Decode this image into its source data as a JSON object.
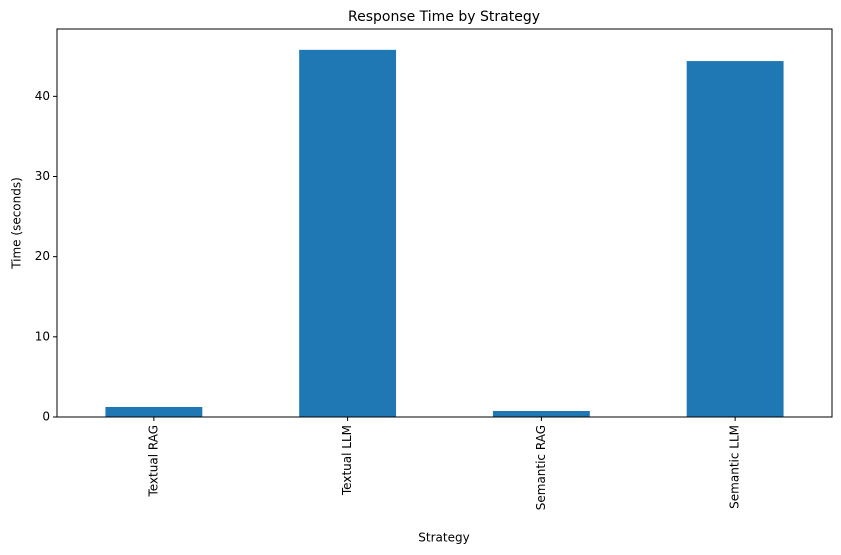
{
  "chart_data": {
    "type": "bar",
    "title": "Response Time by Strategy",
    "x_label": "Strategy",
    "y_label": "Time (seconds)",
    "categories": [
      "Textual RAG",
      "Textual LLM",
      "Semantic RAG",
      "Semantic LLM"
    ],
    "values": [
      1.25,
      45.8,
      0.75,
      44.4
    ],
    "color": "#1f77b4",
    "ylim": [
      0,
      48.4
    ],
    "yticks": [
      0,
      10,
      20,
      30,
      40
    ],
    "grid": false
  }
}
